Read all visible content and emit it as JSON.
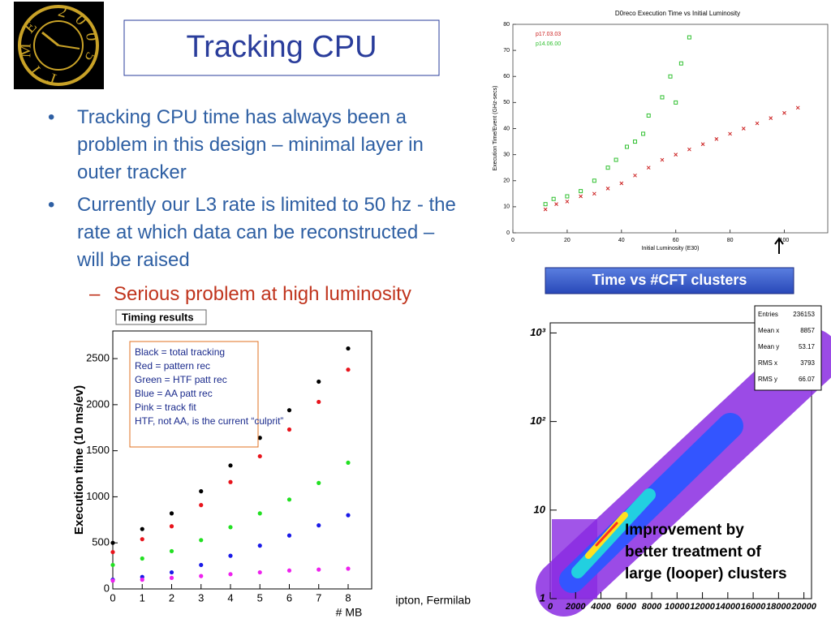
{
  "title": "Tracking CPU",
  "logo_text": "TIME 2005",
  "bullets": [
    "Tracking CPU time has always been a problem in this design – minimal layer in outer tracker",
    "Currently our L3 rate is limited to 50 hz - the rate at which data can be reconstructed – will be raised"
  ],
  "sub_bullet": "Serious problem at high luminosity",
  "footer": "ipton, Fermilab",
  "chart_data": [
    {
      "type": "scatter",
      "panel_title": "Timing results",
      "xlabel": "# MB",
      "ylabel": "Execution time (10 ms/ev)",
      "legend_text": [
        "Black = total tracking",
        "Red = pattern rec",
        "Green = HTF patt rec",
        "Blue = AA patt rec",
        "Pink = track fit",
        "HTF, not AA, is the current “culprit”"
      ],
      "x": [
        0,
        1,
        2,
        3,
        4,
        5,
        6,
        7,
        8
      ],
      "series": [
        {
          "color": "#000000",
          "values": [
            500,
            650,
            820,
            1060,
            1340,
            1640,
            1940,
            2250,
            2610
          ]
        },
        {
          "color": "#e8141c",
          "values": [
            400,
            540,
            680,
            910,
            1160,
            1440,
            1730,
            2030,
            2380
          ]
        },
        {
          "color": "#22e022",
          "values": [
            260,
            330,
            410,
            530,
            670,
            820,
            970,
            1150,
            1370
          ]
        },
        {
          "color": "#1a1ae8",
          "values": [
            100,
            130,
            180,
            260,
            360,
            470,
            580,
            690,
            800
          ]
        },
        {
          "color": "#ee22ee",
          "values": [
            90,
            100,
            120,
            140,
            160,
            180,
            200,
            210,
            220
          ]
        }
      ],
      "xlim": [
        0,
        8.8
      ],
      "ylim": [
        0,
        2800
      ],
      "xticks": [
        0,
        1,
        2,
        3,
        4,
        5,
        6,
        7,
        8
      ],
      "yticks": [
        0,
        500,
        1000,
        1500,
        2000,
        2500
      ]
    },
    {
      "type": "scatter",
      "title": "D0reco Execution Time vs Initial Luminosity",
      "xlabel": "Initial Luminosity (E30)",
      "ylabel": "Execution Time/Event (GHz-secs)",
      "series": [
        {
          "name": "p17.03.03",
          "color": "#cc2020",
          "marker": "x",
          "x": [
            12,
            16,
            20,
            25,
            30,
            35,
            40,
            45,
            50,
            55,
            60,
            65,
            70,
            75,
            80,
            85,
            90,
            95,
            100,
            105
          ],
          "values": [
            9,
            11,
            12,
            14,
            15,
            17,
            19,
            22,
            25,
            28,
            30,
            32,
            34,
            36,
            38,
            40,
            42,
            44,
            46,
            48
          ]
        },
        {
          "name": "p14.06.00",
          "color": "#30c030",
          "marker": "square",
          "x": [
            12,
            15,
            20,
            25,
            30,
            35,
            38,
            42,
            45,
            48,
            50,
            55,
            58,
            60,
            62,
            65
          ],
          "values": [
            11,
            13,
            14,
            16,
            20,
            25,
            28,
            33,
            35,
            38,
            45,
            52,
            60,
            50,
            65,
            75
          ]
        }
      ],
      "xlim": [
        0,
        116
      ],
      "ylim": [
        0,
        80
      ],
      "xticks": [
        0,
        20,
        40,
        60,
        80,
        100
      ],
      "yticks": [
        0,
        10,
        20,
        30,
        40,
        50,
        60,
        70,
        80
      ]
    },
    {
      "type": "heatmap",
      "title": "Time vs #CFT clusters",
      "log_y": true,
      "xlim": [
        0,
        20600
      ],
      "ylim": [
        1,
        1300
      ],
      "xticks": [
        0,
        2000,
        4000,
        6000,
        8000,
        10000,
        12000,
        14000,
        16000,
        18000,
        20000
      ],
      "yticks": [
        1,
        10,
        {
          "value": 100,
          "label": "10²"
        },
        {
          "value": 1000,
          "label": "10³"
        }
      ],
      "stats": [
        {
          "label": "Entries",
          "value": 236153
        },
        {
          "label": "Mean x",
          "value": 8857
        },
        {
          "label": "Mean y",
          "value": 53.17
        },
        {
          "label": "RMS x",
          "value": 3793
        },
        {
          "label": "RMS y",
          "value": 66.07
        }
      ],
      "annotation": [
        "Improvement by",
        "better treatment of",
        "large (looper) clusters"
      ]
    }
  ]
}
